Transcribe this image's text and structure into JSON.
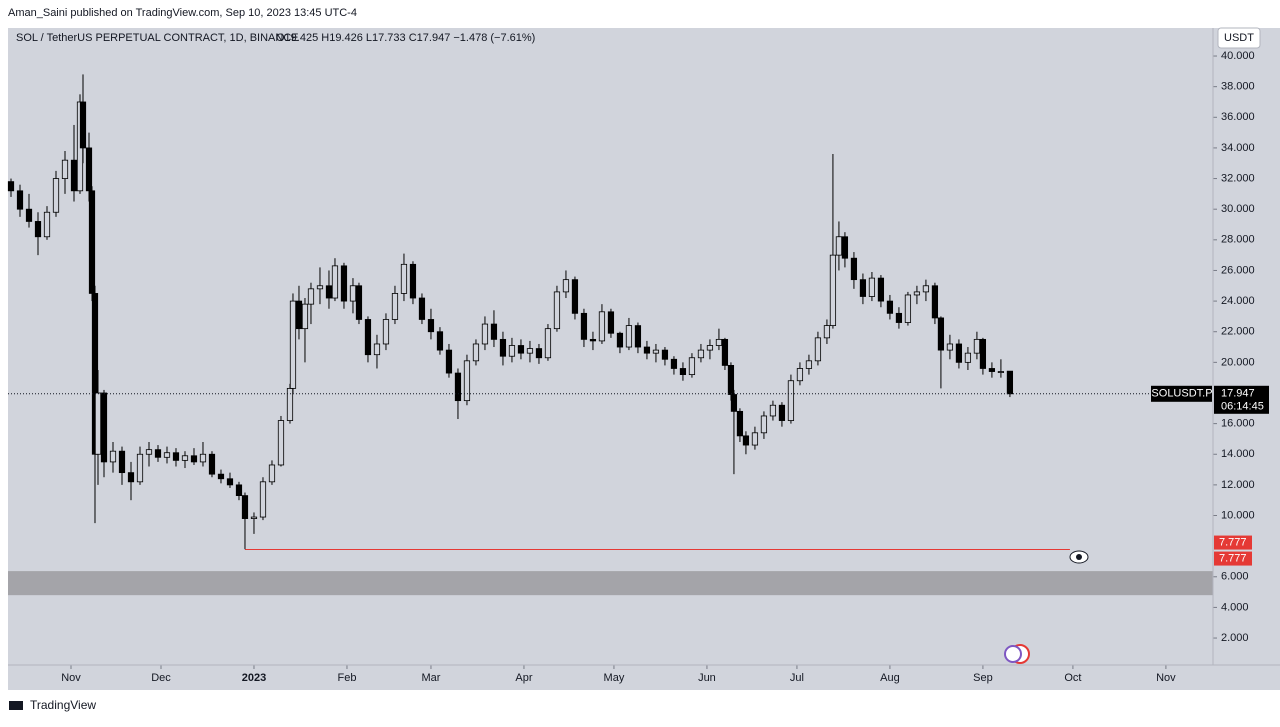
{
  "header": {
    "published": "Aman_Saini published on TradingView.com, Sep 10, 2023 13:45 UTC-4",
    "legend": "SOL / TetherUS PERPETUAL CONTRACT, 1D, BINANCE",
    "ohlc": "O19.425 H19.426 L17.733 C17.947 −1.478 (−7.61%)",
    "currency": "USDT"
  },
  "footer": {
    "brand": "TradingView"
  },
  "chart_data": {
    "type": "candlestick",
    "x": [
      -20,
      -17,
      -14,
      -11,
      -8,
      -5,
      -2,
      1,
      3,
      4,
      6,
      7,
      8,
      9,
      11,
      14,
      17,
      20,
      23,
      26,
      29,
      32,
      35,
      38,
      41,
      44,
      47,
      50,
      53,
      56,
      58,
      61,
      64,
      67,
      70,
      73,
      74,
      76,
      78,
      80,
      83,
      86,
      88,
      91,
      94,
      96,
      99,
      102,
      105,
      108,
      111,
      114,
      117,
      120,
      123,
      126,
      129,
      132,
      135,
      138,
      141,
      144,
      147,
      150,
      153,
      156,
      159,
      162,
      165,
      168,
      171,
      174,
      177,
      180,
      183,
      186,
      189,
      192,
      195,
      198,
      201,
      204,
      207,
      210,
      213,
      216,
      218,
      220,
      221,
      223,
      225,
      228,
      231,
      234,
      237,
      240,
      243,
      246,
      249,
      252,
      254,
      256,
      258,
      261,
      264,
      267,
      270,
      273,
      276,
      279,
      282,
      285,
      288,
      290,
      293,
      296,
      299,
      302,
      304,
      307,
      310,
      313
    ],
    "open": [
      31.8,
      31.2,
      30.0,
      29.2,
      28.2,
      29.8,
      32.0,
      33.2,
      31.2,
      37.0,
      34.0,
      31.2,
      24.5,
      14.0,
      18.0,
      13.5,
      14.2,
      12.8,
      12.2,
      14.0,
      14.3,
      13.8,
      14.1,
      13.6,
      13.9,
      13.5,
      14.0,
      12.7,
      12.4,
      12.0,
      11.3,
      9.8,
      9.9,
      12.2,
      13.3,
      16.2,
      18.3,
      24.0,
      22.2,
      23.8,
      24.8,
      25.0,
      24.2,
      26.3,
      24.0,
      25.0,
      22.8,
      20.5,
      21.2,
      22.8,
      24.5,
      26.4,
      24.2,
      22.8,
      22.0,
      20.8,
      19.3,
      17.5,
      20.1,
      21.2,
      22.5,
      21.5,
      20.4,
      21.1,
      20.6,
      20.9,
      20.3,
      22.2,
      24.6,
      25.4,
      23.2,
      21.5,
      21.4,
      23.3,
      21.9,
      21.0,
      22.4,
      21.0,
      20.6,
      20.8,
      20.2,
      19.6,
      19.2,
      20.3,
      20.8,
      21.1,
      21.5,
      19.8,
      17.9,
      16.8,
      15.2,
      14.6,
      15.4,
      16.5,
      17.2,
      16.2,
      18.8,
      19.6,
      20.1,
      21.6,
      22.4,
      27.0,
      28.2,
      26.8,
      25.4,
      24.3,
      25.5,
      24.0,
      23.2,
      22.6,
      24.4,
      24.6,
      25.0,
      22.9,
      20.8,
      21.2,
      20.0,
      20.6,
      21.5,
      19.6,
      19.4,
      19.425
    ],
    "high": [
      32.0,
      31.6,
      31.0,
      29.8,
      30.2,
      32.5,
      33.8,
      35.5,
      37.5,
      38.8,
      35.0,
      31.5,
      25.0,
      19.5,
      18.2,
      14.8,
      14.5,
      13.5,
      14.5,
      14.8,
      14.6,
      14.5,
      14.4,
      14.2,
      14.4,
      14.8,
      14.2,
      13.0,
      12.8,
      12.2,
      11.5,
      10.2,
      12.5,
      13.6,
      16.5,
      18.6,
      24.5,
      25.0,
      24.2,
      25.2,
      26.2,
      26.0,
      26.8,
      26.5,
      25.5,
      25.2,
      23.0,
      21.8,
      23.2,
      25.0,
      27.1,
      26.6,
      24.5,
      23.5,
      22.3,
      21.2,
      19.6,
      20.5,
      21.5,
      23.0,
      23.4,
      22.0,
      21.6,
      21.5,
      21.4,
      21.2,
      22.5,
      25.0,
      26.0,
      25.6,
      23.5,
      22.0,
      23.8,
      23.5,
      22.0,
      22.9,
      22.6,
      21.4,
      21.2,
      21.0,
      20.4,
      20.0,
      20.6,
      21.2,
      21.5,
      22.2,
      21.6,
      20.0,
      18.2,
      17.0,
      15.5,
      15.8,
      16.8,
      17.5,
      17.4,
      19.2,
      20.0,
      20.5,
      22.0,
      22.8,
      33.6,
      29.2,
      28.5,
      27.2,
      25.8,
      25.9,
      25.7,
      24.4,
      23.6,
      24.6,
      25.0,
      25.4,
      25.2,
      23.0,
      21.8,
      21.5,
      21.0,
      22.0,
      21.6,
      20.0,
      20.2,
      19.426
    ],
    "low": [
      30.8,
      29.5,
      28.8,
      27.0,
      28.0,
      29.5,
      31.0,
      30.5,
      31.0,
      33.0,
      30.5,
      24.0,
      9.5,
      12.0,
      12.5,
      12.8,
      12.0,
      11.0,
      12.0,
      13.2,
      13.5,
      13.4,
      13.2,
      13.1,
      13.3,
      13.2,
      12.5,
      12.1,
      11.8,
      11.0,
      7.8,
      8.8,
      9.7,
      12.0,
      13.2,
      16.0,
      18.0,
      21.5,
      20.0,
      22.5,
      23.8,
      23.5,
      24.0,
      23.5,
      23.2,
      22.5,
      20.0,
      19.6,
      20.8,
      22.5,
      24.0,
      23.8,
      22.5,
      21.5,
      20.5,
      19.0,
      16.3,
      17.2,
      19.8,
      20.8,
      21.0,
      19.8,
      20.0,
      20.2,
      20.0,
      19.9,
      20.1,
      22.0,
      24.2,
      22.8,
      21.0,
      20.8,
      21.2,
      21.6,
      20.6,
      20.8,
      20.6,
      20.2,
      20.0,
      19.8,
      19.2,
      18.8,
      19.0,
      20.0,
      20.2,
      20.8,
      19.5,
      17.5,
      12.7,
      14.8,
      14.0,
      14.3,
      15.0,
      16.2,
      15.8,
      16.0,
      18.5,
      19.2,
      19.8,
      21.2,
      22.2,
      26.0,
      26.2,
      24.8,
      23.8,
      24.0,
      23.6,
      22.8,
      22.2,
      22.4,
      23.8,
      24.0,
      22.5,
      18.3,
      20.2,
      19.6,
      19.5,
      20.2,
      19.2,
      19.0,
      19.0,
      17.733
    ],
    "close": [
      31.2,
      30.0,
      29.2,
      28.2,
      29.8,
      32.0,
      33.2,
      31.2,
      37.0,
      34.0,
      31.2,
      24.5,
      14.0,
      18.0,
      13.5,
      14.2,
      12.8,
      12.2,
      14.0,
      14.3,
      13.8,
      14.1,
      13.6,
      13.9,
      13.5,
      14.0,
      12.7,
      12.4,
      12.0,
      11.3,
      9.8,
      9.9,
      12.2,
      13.3,
      16.2,
      18.3,
      24.0,
      22.2,
      23.8,
      24.8,
      25.0,
      24.2,
      26.3,
      24.0,
      25.0,
      22.8,
      20.5,
      21.2,
      22.8,
      24.5,
      26.4,
      24.2,
      22.8,
      22.0,
      20.8,
      19.3,
      17.5,
      20.1,
      21.2,
      22.5,
      21.5,
      20.4,
      21.1,
      20.6,
      20.9,
      20.3,
      22.2,
      24.6,
      25.4,
      23.2,
      21.5,
      21.4,
      23.3,
      21.9,
      21.0,
      22.4,
      21.0,
      20.6,
      20.8,
      20.2,
      19.6,
      19.2,
      20.3,
      20.8,
      21.1,
      21.5,
      19.8,
      17.9,
      16.8,
      15.2,
      14.6,
      15.4,
      16.5,
      17.2,
      16.2,
      18.8,
      19.6,
      20.1,
      21.6,
      22.4,
      27.0,
      28.2,
      26.8,
      25.4,
      24.3,
      25.5,
      24.0,
      23.2,
      22.6,
      24.4,
      24.6,
      25.0,
      22.9,
      20.8,
      21.2,
      20.0,
      20.6,
      21.5,
      19.6,
      19.4,
      19.4,
      17.947
    ],
    "xlim": [
      -21,
      380.7
    ],
    "xticks": [
      {
        "value": 0,
        "label": "Nov"
      },
      {
        "value": 30,
        "label": "Dec"
      },
      {
        "value": 61,
        "label": "2023"
      },
      {
        "value": 92,
        "label": "Feb"
      },
      {
        "value": 120,
        "label": "Mar"
      },
      {
        "value": 151,
        "label": "Apr"
      },
      {
        "value": 181,
        "label": "May"
      },
      {
        "value": 212,
        "label": "Jun"
      },
      {
        "value": 242,
        "label": "Jul"
      },
      {
        "value": 273,
        "label": "Aug"
      },
      {
        "value": 304,
        "label": "Sep"
      },
      {
        "value": 334,
        "label": "Oct"
      },
      {
        "value": 365,
        "label": "Nov"
      }
    ],
    "ylim": [
      0.24,
      40.72
    ],
    "yticks": [
      {
        "value": 2,
        "label": "2.000"
      },
      {
        "value": 4,
        "label": "4.000"
      },
      {
        "value": 6,
        "label": "6.000"
      },
      {
        "value": 10,
        "label": "10.000"
      },
      {
        "value": 12,
        "label": "12.000"
      },
      {
        "value": 14,
        "label": "14.000"
      },
      {
        "value": 16,
        "label": "16.000"
      },
      {
        "value": 20,
        "label": "20.000"
      },
      {
        "value": 22,
        "label": "22.000"
      },
      {
        "value": 24,
        "label": "24.000"
      },
      {
        "value": 26,
        "label": "26.000"
      },
      {
        "value": 28,
        "label": "28.000"
      },
      {
        "value": 30,
        "label": "30.000"
      },
      {
        "value": 32,
        "label": "32.000"
      },
      {
        "value": 34,
        "label": "34.000"
      },
      {
        "value": 36,
        "label": "36.000"
      },
      {
        "value": 38,
        "label": "38.000"
      },
      {
        "value": 40,
        "label": "40.000"
      }
    ],
    "up_color": "#d1d4dc",
    "down_color": "#000000",
    "last_price": {
      "symbol": "SOLUSDT.P",
      "countdown": "06:14:45"
    },
    "horizontal_line": {
      "value": 7.777,
      "start": 58,
      "end": 333,
      "color": "#e53935"
    },
    "zone": {
      "low": 4.8,
      "high": 6.37,
      "color": "#a4a4a9"
    }
  }
}
